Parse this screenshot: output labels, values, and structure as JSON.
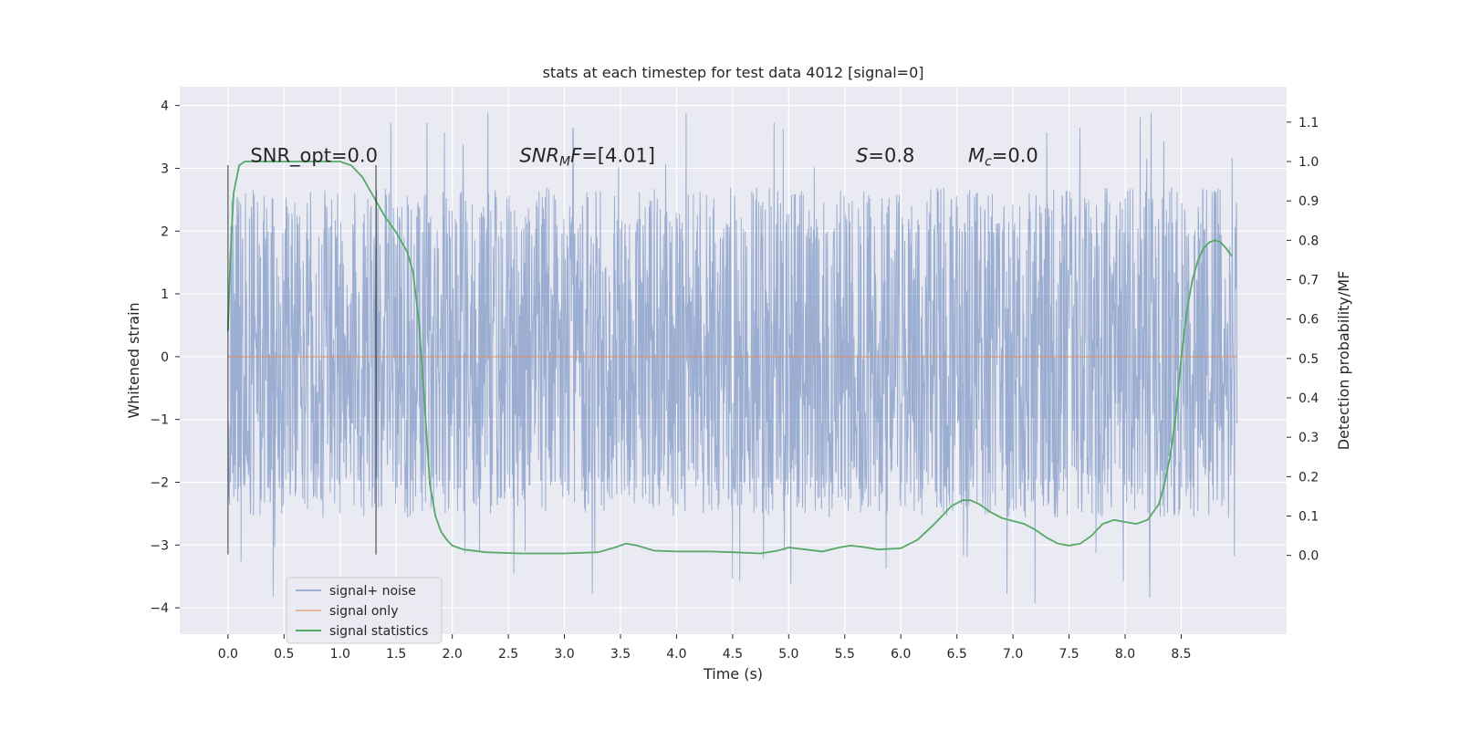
{
  "chart_data": {
    "type": "line",
    "title": "stats at each timestep for test data 4012 [signal=0]",
    "xlabel": "Time (s)",
    "ylabel_left": "Whitened strain",
    "ylabel_right": "Detection probability/MF",
    "xlim": [
      -0.43,
      9.44
    ],
    "ylim_left": [
      -4.42,
      4.3
    ],
    "ylim_right": [
      -0.2,
      1.19
    ],
    "x_ticks": [
      0.0,
      0.5,
      1.0,
      1.5,
      2.0,
      2.5,
      3.0,
      3.5,
      4.0,
      4.5,
      5.0,
      5.5,
      6.0,
      6.5,
      7.0,
      7.5,
      8.0,
      8.5
    ],
    "x_tick_labels": [
      "0.0",
      "0.5",
      "1.0",
      "1.5",
      "2.0",
      "2.5",
      "3.0",
      "3.5",
      "4.0",
      "4.5",
      "5.0",
      "5.5",
      "6.0",
      "6.5",
      "7.0",
      "7.5",
      "8.0",
      "8.5"
    ],
    "y_left_ticks": [
      -4,
      -3,
      -2,
      -1,
      0,
      1,
      2,
      3,
      4
    ],
    "y_left_tick_labels": [
      "−4",
      "−3",
      "−2",
      "−1",
      "0",
      "1",
      "2",
      "3",
      "4"
    ],
    "y_right_ticks": [
      0.0,
      0.1,
      0.2,
      0.3,
      0.4,
      0.5,
      0.6,
      0.7,
      0.8,
      0.9,
      1.0,
      1.1
    ],
    "y_right_tick_labels": [
      "0.0",
      "0.1",
      "0.2",
      "0.3",
      "0.4",
      "0.5",
      "0.6",
      "0.7",
      "0.8",
      "0.9",
      "1.0",
      "1.1"
    ],
    "vertical_markers": [
      {
        "x": 0.0,
        "y0": -3.15,
        "y1": 3.05
      },
      {
        "x": 1.32,
        "y0": -3.15,
        "y1": 3.05
      }
    ],
    "annotations": [
      {
        "x": 0.2,
        "y": 3.1,
        "parts": [
          {
            "t": "SNR_opt=0.0",
            "i": false
          }
        ]
      },
      {
        "x": 2.6,
        "y": 3.1,
        "parts": [
          {
            "t": "SNR",
            "i": true
          },
          {
            "t": "M",
            "i": true,
            "sub": true
          },
          {
            "t": "F",
            "i": true
          },
          {
            "t": "=[4.01]",
            "i": false
          }
        ]
      },
      {
        "x": 5.6,
        "y": 3.1,
        "parts": [
          {
            "t": "S",
            "i": true
          },
          {
            "t": "=0.8",
            "i": false
          }
        ]
      },
      {
        "x": 6.6,
        "y": 3.1,
        "parts": [
          {
            "t": "M",
            "i": true
          },
          {
            "t": "c",
            "i": true,
            "sub": true
          },
          {
            "t": "=0.0",
            "i": false
          }
        ]
      }
    ],
    "noise": {
      "name": "signal+ noise",
      "x_range": [
        0.0,
        9.0
      ],
      "typical_amplitude": [
        -1.9,
        2.0
      ],
      "extreme_range": [
        -4.0,
        3.92
      ]
    },
    "series": [
      {
        "name": "signal only",
        "axis": "left",
        "x": [
          0.0,
          9.0
        ],
        "y": [
          0.0,
          0.0
        ]
      },
      {
        "name": "signal statistics",
        "axis": "right",
        "x": [
          0.0,
          0.02,
          0.05,
          0.1,
          0.15,
          0.2,
          0.3,
          0.5,
          0.7,
          0.9,
          1.0,
          1.05,
          1.1,
          1.2,
          1.3,
          1.4,
          1.5,
          1.6,
          1.65,
          1.7,
          1.75,
          1.8,
          1.85,
          1.9,
          1.95,
          2.0,
          2.1,
          2.3,
          2.6,
          3.0,
          3.3,
          3.45,
          3.55,
          3.65,
          3.8,
          4.0,
          4.3,
          4.5,
          4.75,
          4.9,
          5.0,
          5.15,
          5.3,
          5.45,
          5.55,
          5.65,
          5.8,
          6.0,
          6.15,
          6.3,
          6.45,
          6.55,
          6.62,
          6.7,
          6.8,
          6.9,
          7.1,
          7.2,
          7.3,
          7.4,
          7.5,
          7.6,
          7.7,
          7.8,
          7.9,
          8.0,
          8.1,
          8.2,
          8.3,
          8.35,
          8.4,
          8.45,
          8.5,
          8.55,
          8.6,
          8.65,
          8.7,
          8.75,
          8.8,
          8.85,
          8.9,
          8.95
        ],
        "y": [
          0.57,
          0.75,
          0.92,
          0.99,
          1.0,
          1.0,
          1.0,
          1.0,
          1.0,
          1.0,
          1.0,
          0.995,
          0.99,
          0.96,
          0.91,
          0.86,
          0.82,
          0.77,
          0.72,
          0.6,
          0.4,
          0.18,
          0.1,
          0.06,
          0.04,
          0.025,
          0.015,
          0.008,
          0.005,
          0.005,
          0.008,
          0.02,
          0.03,
          0.025,
          0.012,
          0.01,
          0.01,
          0.008,
          0.005,
          0.012,
          0.02,
          0.015,
          0.01,
          0.02,
          0.025,
          0.022,
          0.015,
          0.018,
          0.04,
          0.08,
          0.125,
          0.14,
          0.14,
          0.13,
          0.11,
          0.095,
          0.08,
          0.065,
          0.045,
          0.03,
          0.025,
          0.03,
          0.05,
          0.08,
          0.09,
          0.085,
          0.08,
          0.09,
          0.13,
          0.18,
          0.25,
          0.35,
          0.5,
          0.62,
          0.7,
          0.75,
          0.78,
          0.795,
          0.8,
          0.795,
          0.78,
          0.76
        ]
      }
    ],
    "legend": {
      "location": "lower-left",
      "entries": [
        {
          "label": "signal+ noise",
          "color": "#4c72b0",
          "alpha": 0.5
        },
        {
          "label": "signal only",
          "color": "#dd8452",
          "alpha": 0.5
        },
        {
          "label": "signal statistics",
          "color": "#55a868",
          "alpha": 1.0
        }
      ]
    },
    "colors": {
      "plot_background": "#eaeaf2",
      "grid": "#ffffff",
      "noise": "#4c72b0",
      "signal_only": "#dd8452",
      "statistics": "#55a868",
      "marker_line": "#000000",
      "text": "#262626"
    }
  }
}
